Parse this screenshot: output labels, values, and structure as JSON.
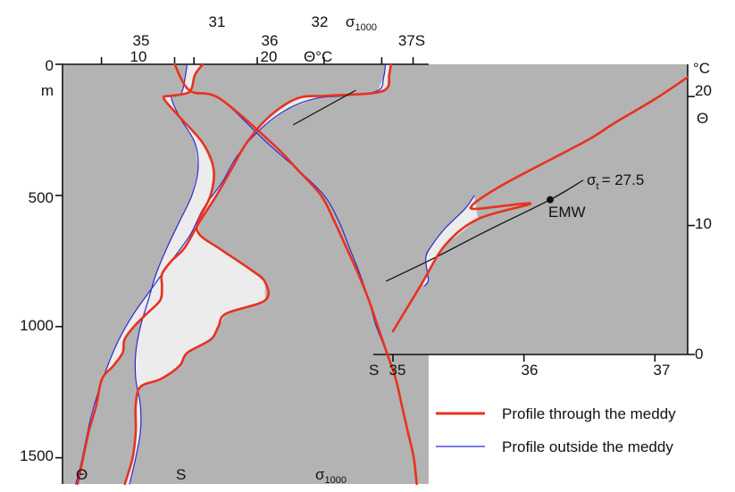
{
  "colors": {
    "panel_bg": "#b3b3b3",
    "fill_between": "#ececec",
    "meddy": "#e8321e",
    "outside": "#2a2ad0",
    "isopycnal": "#111111"
  },
  "top_axes": {
    "sigma_ticks": [
      "31",
      "32"
    ],
    "sigma_label": "σ",
    "sigma_sub": "1000",
    "salinity_ticks": [
      "35",
      "36",
      "37S"
    ],
    "theta_ticks": [
      "10",
      "20"
    ],
    "theta_label": "Θ°C"
  },
  "depth_axis": {
    "unit": "m",
    "ticks": [
      "0",
      "500",
      "1000",
      "1500"
    ]
  },
  "profile_labels": {
    "theta": "Θ",
    "s": "S",
    "sigma": "σ",
    "sigma_sub": "1000"
  },
  "ts_diagram": {
    "x_ticks": [
      "35",
      "36",
      "37"
    ],
    "x_label": "S",
    "y_ticks": [
      "0",
      "10",
      "20"
    ],
    "y_unit": "°C",
    "y_label": "Θ",
    "isopycnal_label": "σ",
    "isopycnal_sub": "t",
    "isopycnal_value": "= 27.5",
    "emw_label": "EMW"
  },
  "legend": {
    "meddy": "Profile through the meddy",
    "outside": "Profile outside the meddy"
  },
  "chart_data": {
    "type": "line",
    "depth_profiles": {
      "ylabel": "m",
      "ylim": [
        1600,
        0
      ],
      "axes": {
        "theta_C": [
          3,
          22.5
        ],
        "salinity": [
          34.75,
          37.1
        ],
        "sigma1000": [
          30.25,
          32.7
        ]
      },
      "series": [
        {
          "name": "Profile through the meddy",
          "theta": [
            [
              20.5,
              0
            ],
            [
              20.4,
              40
            ],
            [
              20.3,
              90
            ],
            [
              19.5,
              110
            ],
            [
              17,
              120
            ],
            [
              15.5,
              130
            ],
            [
              14,
              200
            ],
            [
              12.8,
              300
            ],
            [
              12,
              400
            ],
            [
              11.2,
              500
            ],
            [
              10.3,
              600
            ],
            [
              9.5,
              700
            ],
            [
              8.8,
              750
            ],
            [
              8.3,
              800
            ],
            [
              8.3,
              850
            ],
            [
              8.2,
              900
            ],
            [
              7.5,
              950
            ],
            [
              6.8,
              1000
            ],
            [
              6.3,
              1050
            ],
            [
              6.2,
              1100
            ],
            [
              5.7,
              1150
            ],
            [
              5.1,
              1200
            ],
            [
              4.8,
              1300
            ],
            [
              4.4,
              1400
            ],
            [
              4.1,
              1500
            ],
            [
              3.8,
              1600
            ]
          ],
          "salinity": [
            [
              35.65,
              0
            ],
            [
              35.6,
              40
            ],
            [
              35.58,
              90
            ],
            [
              35.55,
              110
            ],
            [
              35.45,
              120
            ],
            [
              35.4,
              130
            ],
            [
              35.5,
              200
            ],
            [
              35.65,
              300
            ],
            [
              35.72,
              400
            ],
            [
              35.7,
              500
            ],
            [
              35.62,
              600
            ],
            [
              35.63,
              650
            ],
            [
              35.75,
              700
            ],
            [
              35.95,
              780
            ],
            [
              36.05,
              830
            ],
            [
              36.05,
              900
            ],
            [
              35.8,
              950
            ],
            [
              35.75,
              1000
            ],
            [
              35.7,
              1050
            ],
            [
              35.55,
              1100
            ],
            [
              35.5,
              1150
            ],
            [
              35.38,
              1200
            ],
            [
              35.25,
              1230
            ],
            [
              35.22,
              1300
            ],
            [
              35.22,
              1400
            ],
            [
              35.2,
              1500
            ],
            [
              35.15,
              1600
            ]
          ],
          "sigma1000": [
            [
              31.0,
              0
            ],
            [
              31.1,
              100
            ],
            [
              31.3,
              130
            ],
            [
              31.65,
              300
            ],
            [
              31.82,
              400
            ],
            [
              31.98,
              500
            ],
            [
              32.07,
              600
            ],
            [
              32.15,
              700
            ],
            [
              32.23,
              800
            ],
            [
              32.3,
              900
            ],
            [
              32.36,
              1000
            ],
            [
              32.42,
              1100
            ],
            [
              32.48,
              1200
            ],
            [
              32.52,
              1300
            ],
            [
              32.56,
              1400
            ],
            [
              32.6,
              1500
            ],
            [
              32.62,
              1600
            ]
          ]
        },
        {
          "name": "Profile outside the meddy",
          "theta": [
            [
              20.2,
              0
            ],
            [
              20.1,
              50
            ],
            [
              19.8,
              100
            ],
            [
              18,
              120
            ],
            [
              16.5,
              130
            ],
            [
              15,
              170
            ],
            [
              13.5,
              250
            ],
            [
              12.3,
              350
            ],
            [
              11.5,
              450
            ],
            [
              10.5,
              550
            ],
            [
              9.8,
              650
            ],
            [
              8.8,
              750
            ],
            [
              7.8,
              850
            ],
            [
              6.8,
              950
            ],
            [
              6,
              1050
            ],
            [
              5.4,
              1150
            ],
            [
              4.9,
              1250
            ],
            [
              4.5,
              1350
            ],
            [
              4.2,
              1450
            ],
            [
              3.9,
              1550
            ],
            [
              3.7,
              1600
            ]
          ],
          "salinity": [
            [
              35.55,
              0
            ],
            [
              35.52,
              100
            ],
            [
              35.48,
              120
            ],
            [
              35.45,
              130
            ],
            [
              35.5,
              200
            ],
            [
              35.6,
              300
            ],
            [
              35.62,
              400
            ],
            [
              35.58,
              500
            ],
            [
              35.5,
              600
            ],
            [
              35.42,
              700
            ],
            [
              35.35,
              800
            ],
            [
              35.3,
              900
            ],
            [
              35.25,
              1000
            ],
            [
              35.22,
              1100
            ],
            [
              35.22,
              1200
            ],
            [
              35.25,
              1300
            ],
            [
              35.25,
              1400
            ],
            [
              35.22,
              1500
            ],
            [
              35.18,
              1600
            ]
          ],
          "sigma1000": [
            [
              31.0,
              0
            ],
            [
              31.1,
              100
            ],
            [
              31.3,
              130
            ],
            [
              31.62,
              300
            ],
            [
              31.82,
              400
            ],
            [
              32.0,
              500
            ],
            [
              32.1,
              600
            ],
            [
              32.17,
              700
            ],
            [
              32.24,
              800
            ],
            [
              32.3,
              900
            ],
            [
              32.35,
              1000
            ],
            [
              32.42,
              1100
            ],
            [
              32.48,
              1200
            ],
            [
              32.52,
              1300
            ],
            [
              32.56,
              1400
            ],
            [
              32.6,
              1500
            ],
            [
              32.62,
              1600
            ]
          ]
        }
      ]
    },
    "ts_diagram": {
      "xlabel": "S",
      "ylabel": "Θ",
      "xlim": [
        34.85,
        37.25
      ],
      "ylim": [
        0,
        22.5
      ],
      "series": [
        {
          "name": "Profile through the meddy",
          "points": [
            [
              35.0,
              1.8
            ],
            [
              35.22,
              5.5
            ],
            [
              35.4,
              8.5
            ],
            [
              35.65,
              10.5
            ],
            [
              36.05,
              11.7
            ],
            [
              35.65,
              11.3
            ],
            [
              35.6,
              11.5
            ],
            [
              35.7,
              12.3
            ],
            [
              35.9,
              13.5
            ],
            [
              36.2,
              15.1
            ],
            [
              36.5,
              16.7
            ],
            [
              36.7,
              18
            ],
            [
              37.0,
              19.8
            ],
            [
              37.25,
              21.5
            ]
          ]
        },
        {
          "name": "Profile outside the meddy",
          "points": [
            [
              35.24,
              5.3
            ],
            [
              35.27,
              5.8
            ],
            [
              35.25,
              7.5
            ],
            [
              35.3,
              8.5
            ],
            [
              35.4,
              9.8
            ],
            [
              35.55,
              11.3
            ],
            [
              35.62,
              12.3
            ]
          ]
        },
        {
          "name": "σt = 27.5",
          "points": [
            [
              34.95,
              5.7
            ],
            [
              35.3,
              7.4
            ],
            [
              35.7,
              9.5
            ],
            [
              36.2,
              12.0
            ],
            [
              36.45,
              13.5
            ]
          ]
        }
      ],
      "annotations": [
        {
          "text": "EMW",
          "x": 36.2,
          "y": 12.0
        }
      ]
    }
  }
}
